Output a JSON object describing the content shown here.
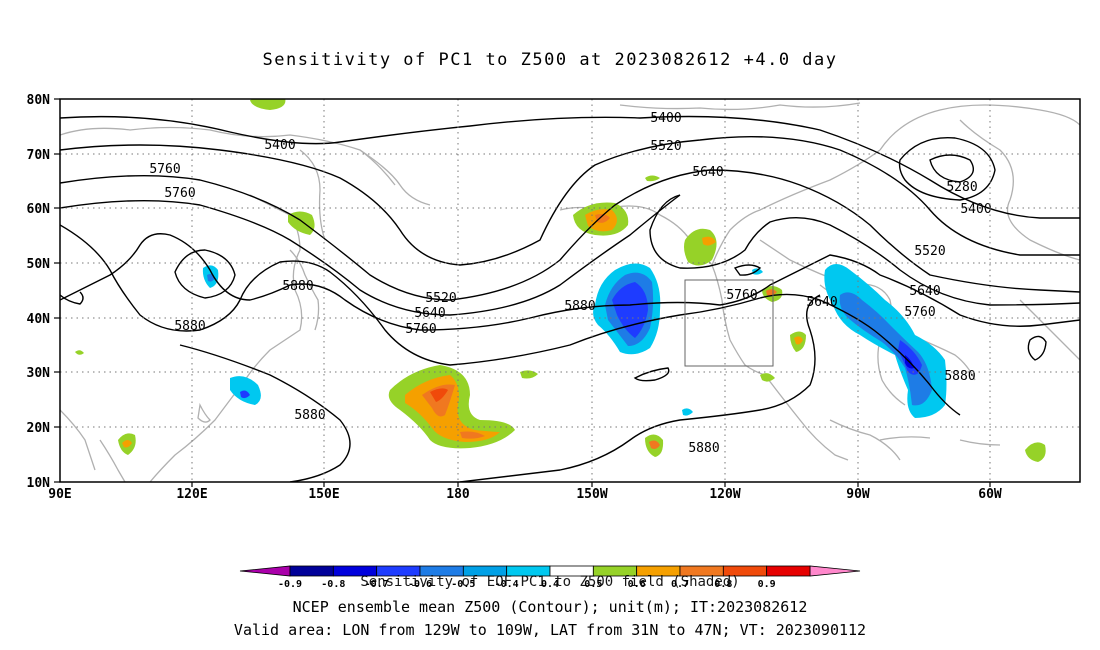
{
  "title": "Sensitivity of PC1 to Z500 at 2023082612 +4.0 day",
  "lat_labels": [
    "80N",
    "70N",
    "60N",
    "50N",
    "40N",
    "30N",
    "20N",
    "10N"
  ],
  "lon_labels": [
    "90E",
    "120E",
    "150E",
    "180",
    "150W",
    "120W",
    "90W",
    "60W"
  ],
  "contour_labels": [
    "5400",
    "5520",
    "5640",
    "5760",
    "5880",
    "5280",
    "5400",
    "5520",
    "5640",
    "5760",
    "5880",
    "5640",
    "5760",
    "5880",
    "5880",
    "5400",
    "5520",
    "5640",
    "5880",
    "5760",
    "5760",
    "5880",
    "5880"
  ],
  "colorbar": {
    "ticks": [
      "-0.9",
      "-0.8",
      "-0.7",
      "-0.6",
      "-0.5",
      "-0.4",
      "0.4",
      "0.5",
      "0.6",
      "0.7",
      "0.8",
      "0.9"
    ],
    "colors": [
      "#000099",
      "#0000dd",
      "#1e3cff",
      "#1e7ce6",
      "#00a0e6",
      "#00c8f0",
      "#ffffff",
      "#96d228",
      "#f5a000",
      "#f07820",
      "#f04a0a",
      "#e60000"
    ],
    "low_color": "#aa00aa",
    "high_color": "#ff88cc",
    "title": "Sensitivity of EOF PC1 to Z500 field (Shaded)"
  },
  "captions": {
    "line1": "NCEP ensemble mean Z500 (Contour); unit(m); IT:2023082612",
    "line2": "Valid area: LON from 129W to 109W, LAT from 31N to 47N; VT: 2023090112"
  }
}
